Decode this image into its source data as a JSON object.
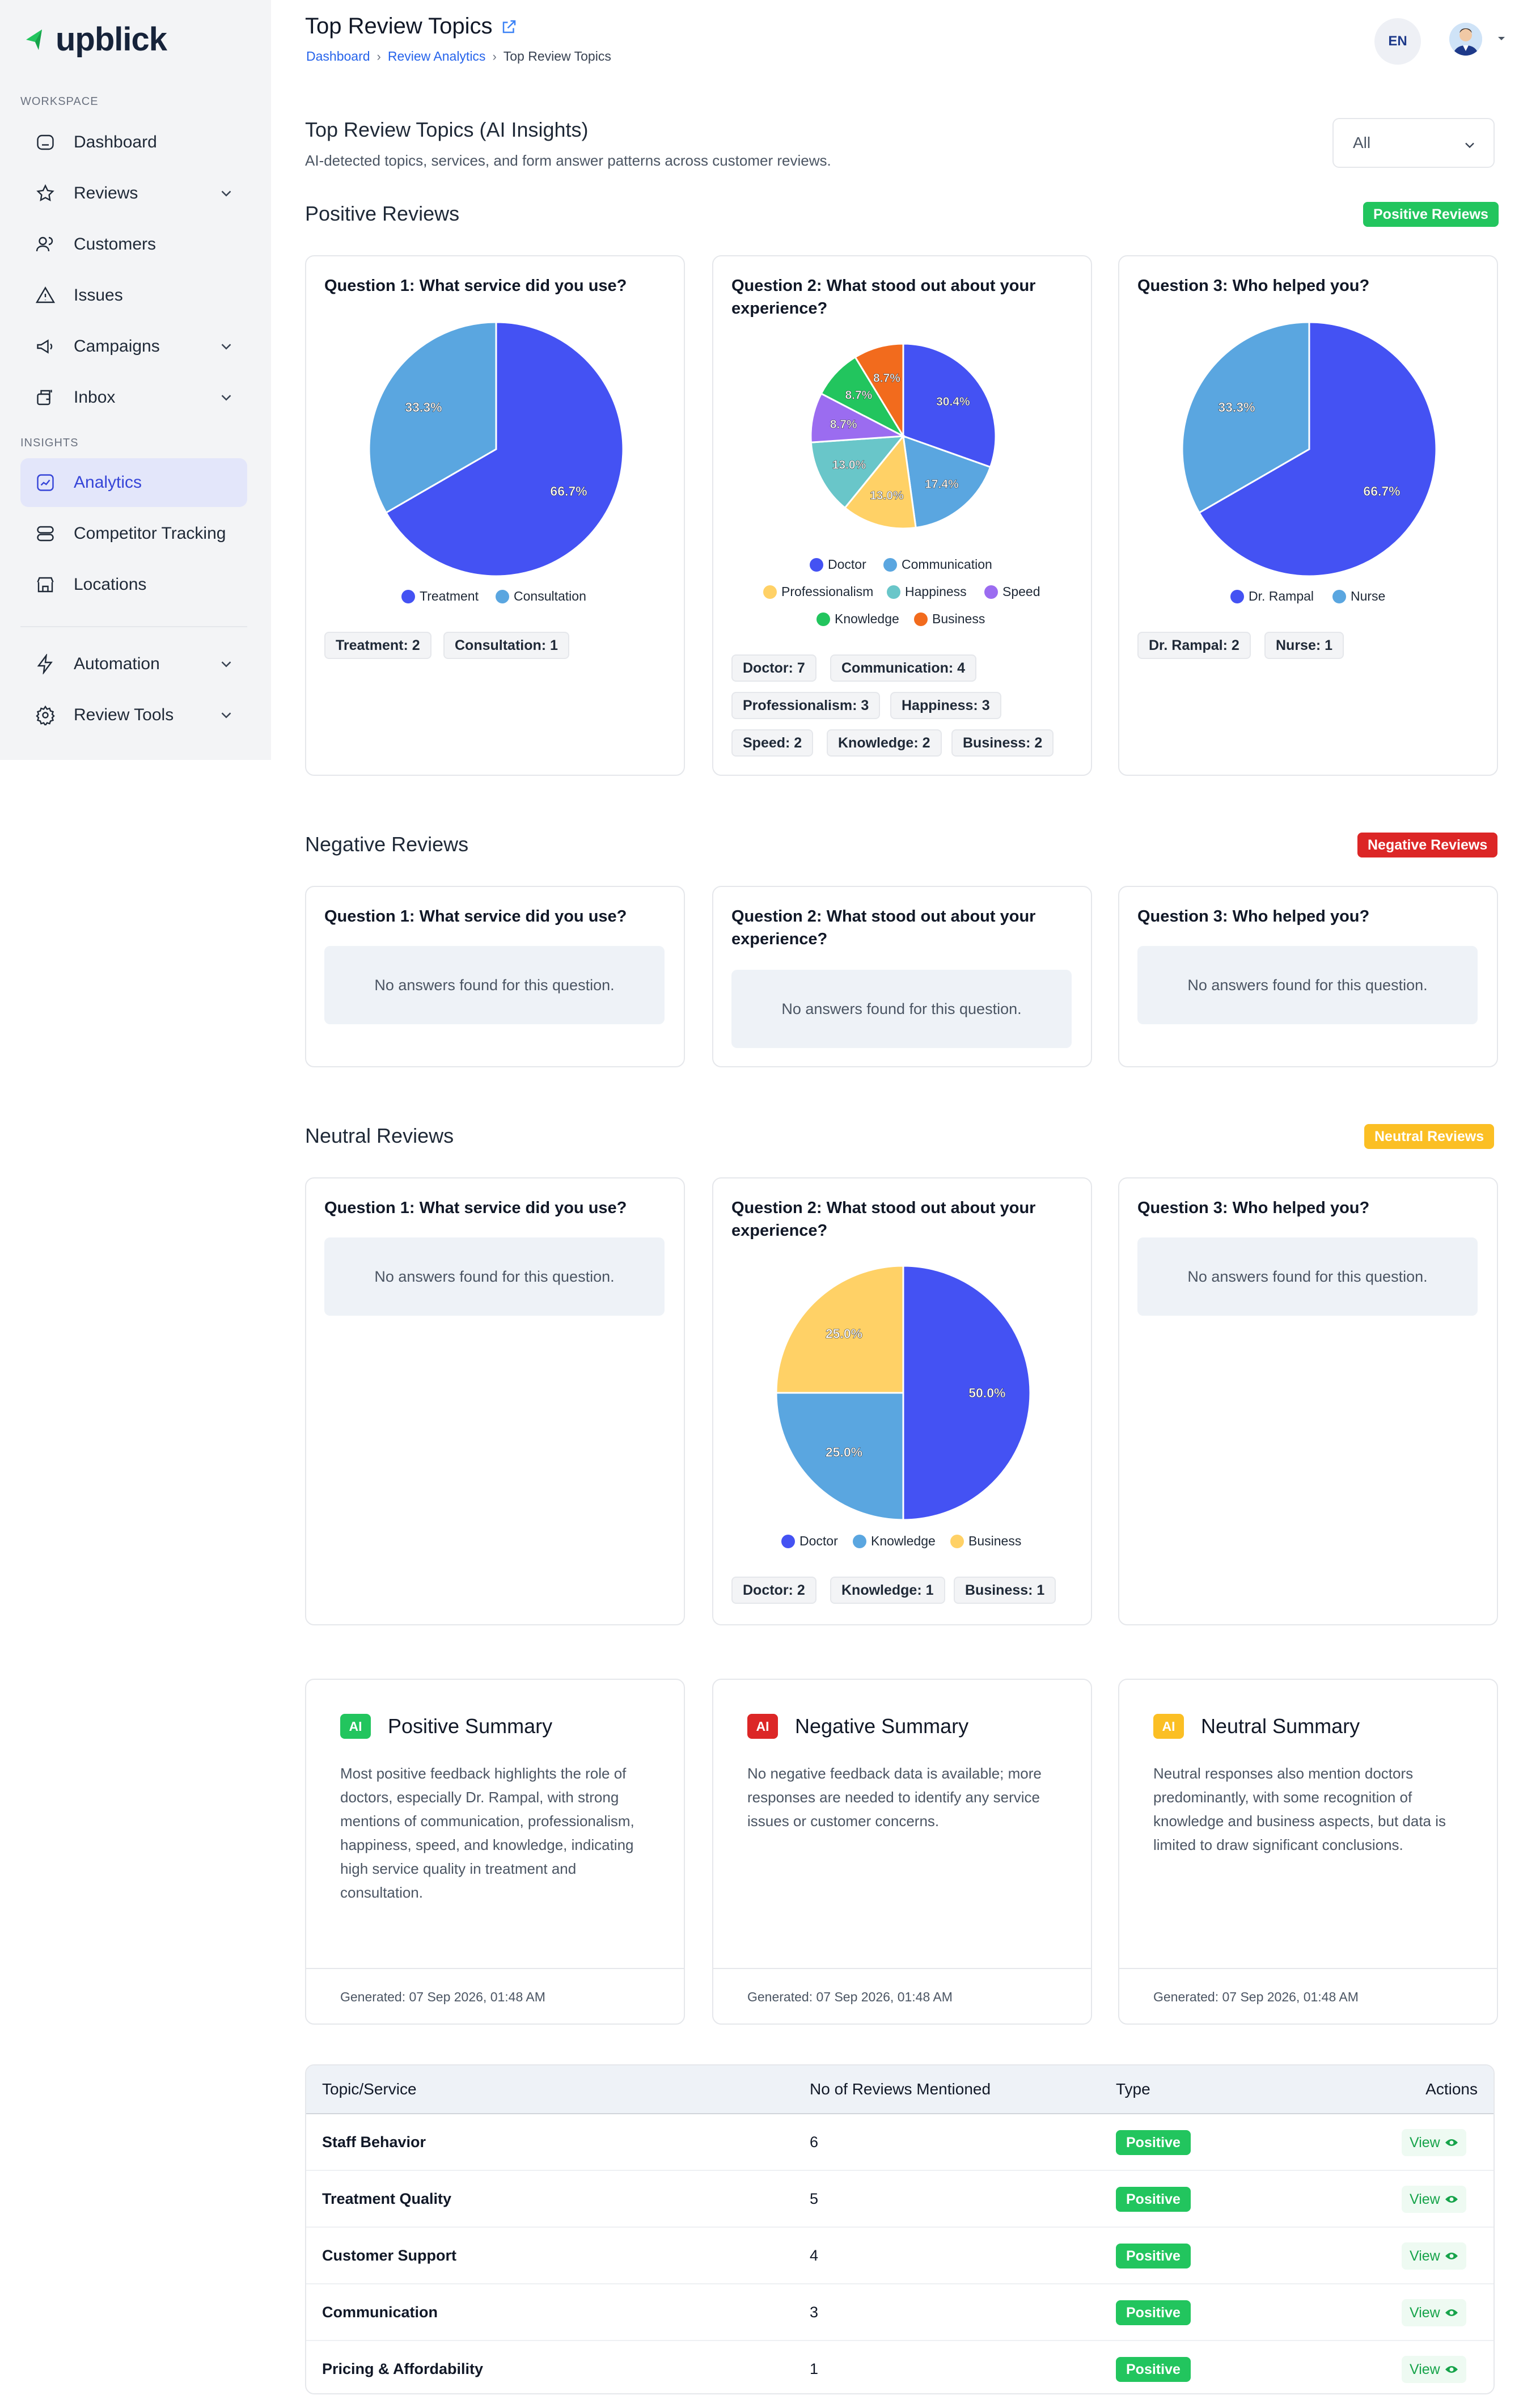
{
  "app": {
    "brand": "upblick"
  },
  "sidebar": {
    "workspace_label": "WORKSPACE",
    "insights_label": "INSIGHTS",
    "items": {
      "dashboard": "Dashboard",
      "reviews": "Reviews",
      "customers": "Customers",
      "issues": "Issues",
      "campaigns": "Campaigns",
      "inbox": "Inbox",
      "analytics": "Analytics",
      "competitor": "Competitor Tracking",
      "locations": "Locations",
      "automation": "Automation",
      "review_tools": "Review Tools"
    }
  },
  "header": {
    "title": "Top Review Topics",
    "breadcrumb": [
      "Dashboard",
      "Review Analytics",
      "Top Review Topics"
    ],
    "language": "EN"
  },
  "insights": {
    "title": "Top Review Topics (AI Insights)",
    "subtitle": "AI-detected topics, services, and form answer patterns across customer reviews.",
    "filter_value": "All"
  },
  "sections": {
    "positive": {
      "title": "Positive Reviews",
      "badge": "Positive Reviews"
    },
    "negative": {
      "title": "Negative Reviews",
      "badge": "Negative Reviews"
    },
    "neutral": {
      "title": "Neutral Reviews",
      "badge": "Neutral Reviews"
    }
  },
  "questions": {
    "q1": "Question 1: What service did you use?",
    "q2": "Question 2: What stood out about your experience?",
    "q3": "Question 3: Who helped you?"
  },
  "empty_message": "No answers found for this question.",
  "colors": {
    "blue": "#4452f3",
    "lightblue": "#5aa6e0",
    "yellow": "#ffd166",
    "teal": "#69c6c9",
    "purple": "#9b6cf0",
    "green": "#22c55e",
    "orange": "#f26b1d"
  },
  "chart_data": [
    {
      "type": "pie",
      "id": "positive-q1",
      "categories": [
        "Treatment",
        "Consultation"
      ],
      "values": [
        2,
        1
      ],
      "labels": [
        "66.7%",
        "33.3%"
      ],
      "colors": [
        "#4452f3",
        "#5aa6e0"
      ]
    },
    {
      "type": "pie",
      "id": "positive-q2",
      "categories": [
        "Doctor",
        "Communication",
        "Professionalism",
        "Happiness",
        "Speed",
        "Knowledge",
        "Business"
      ],
      "values": [
        7,
        4,
        3,
        3,
        2,
        2,
        2
      ],
      "labels": [
        "30.4%",
        "17.4%",
        "13.0%",
        "13.0%",
        "8.7%",
        "8.7%",
        "8.7%"
      ],
      "colors": [
        "#4452f3",
        "#5aa6e0",
        "#ffd166",
        "#69c6c9",
        "#9b6cf0",
        "#22c55e",
        "#f26b1d"
      ]
    },
    {
      "type": "pie",
      "id": "positive-q3",
      "categories": [
        "Dr. Rampal",
        "Nurse"
      ],
      "values": [
        2,
        1
      ],
      "labels": [
        "66.7%",
        "33.3%"
      ],
      "colors": [
        "#4452f3",
        "#5aa6e0"
      ]
    },
    {
      "type": "pie",
      "id": "neutral-q2",
      "categories": [
        "Doctor",
        "Knowledge",
        "Business"
      ],
      "values": [
        2,
        1,
        1
      ],
      "labels": [
        "50.0%",
        "25.0%",
        "25.0%"
      ],
      "colors": [
        "#4452f3",
        "#5aa6e0",
        "#ffd166"
      ]
    }
  ],
  "counts": {
    "pos_q1": [
      "Treatment: 2",
      "Consultation: 1"
    ],
    "pos_q2": [
      "Doctor: 7",
      "Communication: 4",
      "Professionalism: 3",
      "Happiness: 3",
      "Speed: 2",
      "Knowledge: 2",
      "Business: 2"
    ],
    "pos_q3": [
      "Dr. Rampal: 2",
      "Nurse: 1"
    ],
    "neu_q2": [
      "Doctor: 2",
      "Knowledge: 1",
      "Business: 1"
    ]
  },
  "summaries": {
    "ai_label": "AI",
    "positive": {
      "title": "Positive Summary",
      "text": "Most positive feedback highlights the role of doctors, especially Dr. Rampal, with strong mentions of communication, professionalism, happiness, speed, and knowledge, indicating high service quality in treatment and consultation.",
      "generated": "Generated: 07 Sep 2026, 01:48 AM"
    },
    "negative": {
      "title": "Negative Summary",
      "text": "No negative feedback data is available; more responses are needed to identify any service issues or customer concerns.",
      "generated": "Generated: 07 Sep 2026, 01:48 AM"
    },
    "neutral": {
      "title": "Neutral Summary",
      "text": "Neutral responses also mention doctors predominantly, with some recognition of knowledge and business aspects, but data is limited to draw significant conclusions.",
      "generated": "Generated: 07 Sep 2026, 01:48 AM"
    }
  },
  "table": {
    "headers": [
      "Topic/Service",
      "No of Reviews Mentioned",
      "Type",
      "Actions"
    ],
    "rows": [
      {
        "topic": "Staff Behavior",
        "count": "6",
        "type": "Positive",
        "action": "View"
      },
      {
        "topic": "Treatment Quality",
        "count": "5",
        "type": "Positive",
        "action": "View"
      },
      {
        "topic": "Customer Support",
        "count": "4",
        "type": "Positive",
        "action": "View"
      },
      {
        "topic": "Communication",
        "count": "3",
        "type": "Positive",
        "action": "View"
      },
      {
        "topic": "Pricing & Affordability",
        "count": "1",
        "type": "Positive",
        "action": "View"
      }
    ]
  }
}
